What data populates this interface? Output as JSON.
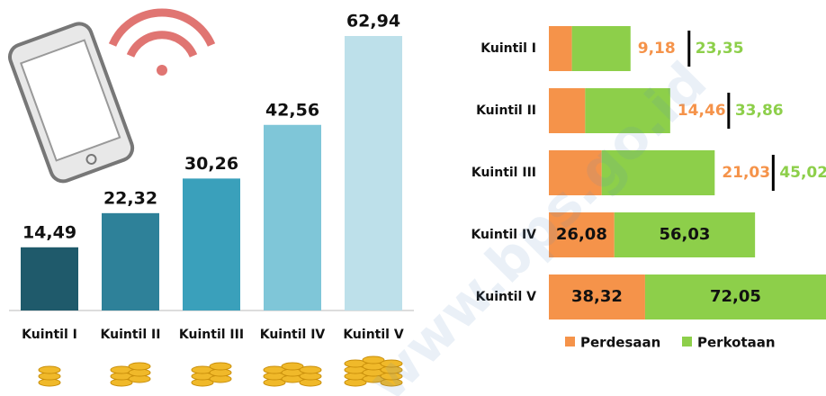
{
  "chart_data": [
    {
      "type": "bar",
      "categories": [
        "Kuintil I",
        "Kuintil II",
        "Kuintil III",
        "Kuintil IV",
        "Kuintil V"
      ],
      "values": [
        14.49,
        22.32,
        30.26,
        42.56,
        62.94
      ],
      "value_labels": [
        "14,49",
        "22,32",
        "30,26",
        "42,56",
        "62,94"
      ],
      "colors": [
        "#1f5a6b",
        "#2e8199",
        "#3aa0bb",
        "#7fc6d8",
        "#bde0ea"
      ]
    },
    {
      "type": "stacked_barh",
      "categories": [
        "Kuintil I",
        "Kuintil II",
        "Kuintil III",
        "Kuintil IV",
        "Kuintil V"
      ],
      "series": [
        {
          "name": "Perdesaan",
          "color": "#f5934a",
          "values": [
            9.18,
            14.46,
            21.03,
            26.08,
            38.32
          ],
          "value_labels": [
            "9,18",
            "14,46",
            "21,03",
            "26,08",
            "38,32"
          ]
        },
        {
          "name": "Perkotaan",
          "color": "#8dcf4a",
          "values": [
            23.35,
            33.86,
            45.02,
            56.03,
            72.05
          ],
          "value_labels": [
            "23,35",
            "33,86",
            "45,02",
            "56,03",
            "72,05"
          ]
        }
      ],
      "legend": "bottom"
    }
  ],
  "watermark": "www.bps.go.id"
}
